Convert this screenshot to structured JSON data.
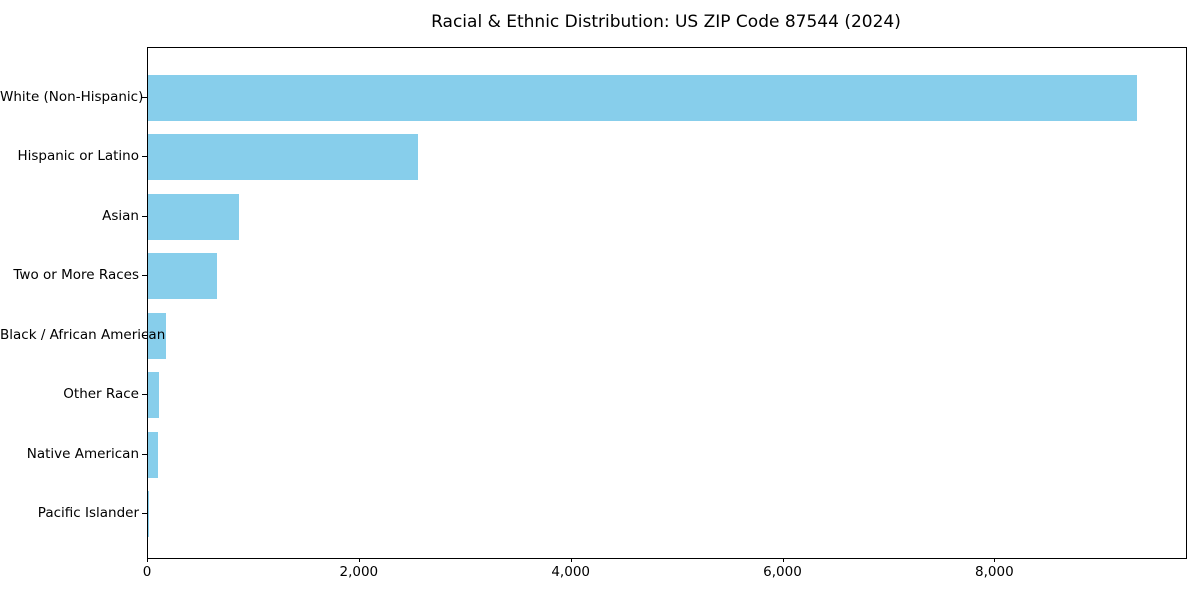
{
  "chart_data": {
    "type": "bar",
    "orientation": "horizontal",
    "title": "Racial & Ethnic Distribution: US ZIP Code 87544 (2024)",
    "categories": [
      "White (Non-Hispanic)",
      "Hispanic or Latino",
      "Asian",
      "Two or More Races",
      "Black / African American",
      "Other Race",
      "Native American",
      "Pacific Islander"
    ],
    "values": [
      9340,
      2550,
      860,
      650,
      170,
      105,
      95,
      8
    ],
    "xlabel": "",
    "ylabel": "",
    "xlim": [
      0,
      9800
    ],
    "xticks": [
      0,
      2000,
      4000,
      6000,
      8000
    ],
    "xtick_labels": [
      "0",
      "2,000",
      "4,000",
      "6,000",
      "8,000"
    ],
    "grid": false,
    "legend_position": "none",
    "bar_color": "#87CEEB",
    "spine_color": "#000000",
    "text_color": "#000000",
    "background_color": "#ffffff"
  }
}
